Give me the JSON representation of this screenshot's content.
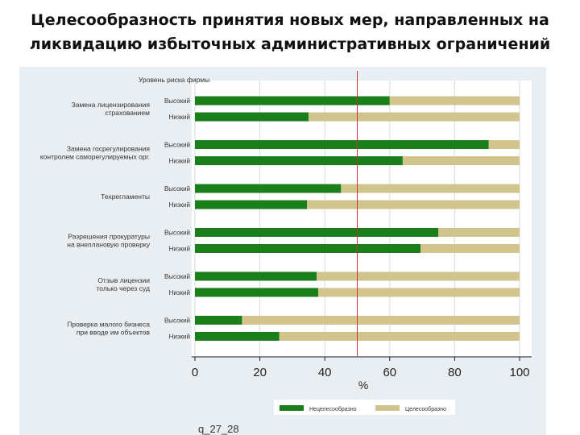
{
  "slide": {
    "title_line1": "Целесообразность принятия новых мер, направленных на",
    "title_line2": "ликвидацию избыточных административных ограничений"
  },
  "chart_data": {
    "type": "bar",
    "stacked": true,
    "orientation": "horizontal",
    "group_header": "Уровень риска фирмы",
    "groups": [
      {
        "label_lines": [
          "Замена лицензирования",
          "страхованием"
        ],
        "bars": [
          {
            "level": "Высокий",
            "value": 60
          },
          {
            "level": "Низкий",
            "value": 35
          }
        ]
      },
      {
        "label_lines": [
          "Замена госрегулирования",
          "контролем саморегулируемых орг."
        ],
        "bars": [
          {
            "level": "Высокий",
            "value": 90.5
          },
          {
            "level": "Низкий",
            "value": 64
          }
        ]
      },
      {
        "label_lines": [
          "Техрегламенты"
        ],
        "bars": [
          {
            "level": "Высокий",
            "value": 45
          },
          {
            "level": "Низкий",
            "value": 34.5
          }
        ]
      },
      {
        "label_lines": [
          "Разрешения прокуратуры",
          "на внеплановую проверку"
        ],
        "bars": [
          {
            "level": "Высокий",
            "value": 75
          },
          {
            "level": "Низкий",
            "value": 69.5
          }
        ]
      },
      {
        "label_lines": [
          "Отзыв лицензии",
          "только через суд"
        ],
        "bars": [
          {
            "level": "Высокий",
            "value": 37.5
          },
          {
            "level": "Низкий",
            "value": 38
          }
        ]
      },
      {
        "label_lines": [
          "Проверка малого бизнеса",
          "при вводе им объектов"
        ],
        "bars": [
          {
            "level": "Высокий",
            "value": 14.5
          },
          {
            "level": "Низкий",
            "value": 26
          }
        ]
      }
    ],
    "series": [
      {
        "name": "Нецелесообразно",
        "color": "#1a7f1a"
      },
      {
        "name": "Целесообразно",
        "color": "#d1c48d"
      }
    ],
    "xlim": [
      0,
      100
    ],
    "xticks": [
      "0",
      "20",
      "40",
      "60",
      "80",
      "100"
    ],
    "xlabel": "%",
    "reference_line": 50,
    "reference_color": "#c83232",
    "grid": true,
    "grid_color": "#d4dde6",
    "legend_position": "bottom",
    "note": "q_27_28"
  }
}
